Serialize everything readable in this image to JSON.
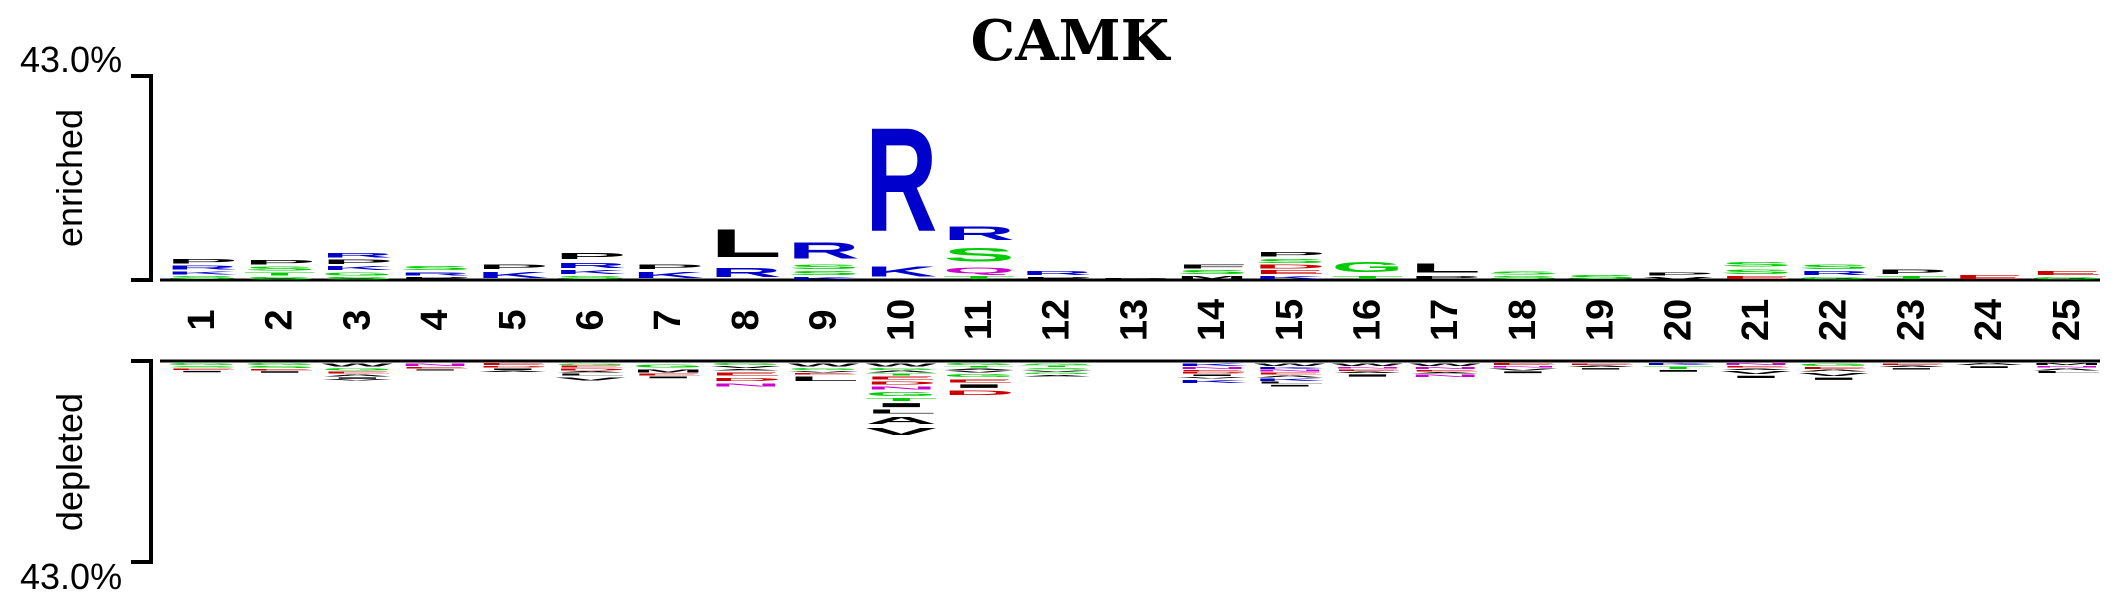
{
  "chart_data": {
    "type": "sequence-logo",
    "title": "CAMK",
    "enriched_label": "enriched",
    "depleted_label": "depleted",
    "top_limit_label": "43.0%",
    "bottom_limit_label": "43.0%",
    "ylim": [
      -43.0,
      43.0
    ],
    "positions": [
      "1",
      "2",
      "3",
      "4",
      "5",
      "6",
      "7",
      "8",
      "9",
      "10",
      "11",
      "12",
      "13",
      "14",
      "15",
      "16",
      "17",
      "18",
      "19",
      "20",
      "21",
      "22",
      "23",
      "24",
      "25"
    ],
    "residue_colors": {
      "R": "#0000cc",
      "K": "#0000cc",
      "H": "#0000cc",
      "D": "#cc0000",
      "E": "#cc0000",
      "S": "#00cc00",
      "T": "#00cc00",
      "G": "#00cc00",
      "Y": "#00cc00",
      "C": "#00cc00",
      "N": "#cc00cc",
      "Q": "#cc00cc",
      "P": "#000000",
      "L": "#000000",
      "A": "#000000",
      "V": "#000000",
      "I": "#000000",
      "M": "#000000",
      "F": "#000000",
      "W": "#000000"
    },
    "enriched": [
      [
        {
          "aa": "S",
          "h": 1.0
        },
        {
          "aa": "K",
          "h": 1.0
        },
        {
          "aa": "R",
          "h": 1.2
        },
        {
          "aa": "P",
          "h": 1.6
        }
      ],
      [
        {
          "aa": "S",
          "h": 0.8
        },
        {
          "aa": "T",
          "h": 1.0
        },
        {
          "aa": "S",
          "h": 1.2
        },
        {
          "aa": "P",
          "h": 1.5
        }
      ],
      [
        {
          "aa": "S",
          "h": 0.8
        },
        {
          "aa": "G",
          "h": 1.0
        },
        {
          "aa": "K",
          "h": 1.3
        },
        {
          "aa": "P",
          "h": 1.4
        },
        {
          "aa": "R",
          "h": 1.5
        }
      ],
      [
        {
          "aa": "P",
          "h": 0.8
        },
        {
          "aa": "R",
          "h": 1.0
        },
        {
          "aa": "S",
          "h": 1.3
        }
      ],
      [
        {
          "aa": "K",
          "h": 2.0
        },
        {
          "aa": "P",
          "h": 1.6
        }
      ],
      [
        {
          "aa": "S",
          "h": 1.0
        },
        {
          "aa": "K",
          "h": 1.2
        },
        {
          "aa": "R",
          "h": 1.8
        },
        {
          "aa": "P",
          "h": 2.0
        }
      ],
      [
        {
          "aa": "K",
          "h": 2.0
        },
        {
          "aa": "P",
          "h": 1.6
        }
      ],
      [
        {
          "aa": "R",
          "h": 3.0
        },
        {
          "aa": "L",
          "h": 9.5
        }
      ],
      [
        {
          "aa": "K",
          "h": 0.8
        },
        {
          "aa": "S",
          "h": 1.2
        },
        {
          "aa": "S",
          "h": 1.5
        },
        {
          "aa": "R",
          "h": 5.5
        }
      ],
      [
        {
          "aa": "K",
          "h": 3.5
        },
        {
          "aa": "R",
          "h": 35.0
        }
      ],
      [
        {
          "aa": "T",
          "h": 1.0
        },
        {
          "aa": "Q",
          "h": 2.0
        },
        {
          "aa": "S",
          "h": 4.5
        },
        {
          "aa": "R",
          "h": 4.5
        }
      ],
      [
        {
          "aa": "P",
          "h": 0.8
        },
        {
          "aa": "R",
          "h": 1.2
        }
      ],
      [
        {
          "aa": "P",
          "h": 0.4
        }
      ],
      [
        {
          "aa": "M",
          "h": 1.0
        },
        {
          "aa": "S",
          "h": 1.2
        },
        {
          "aa": "F",
          "h": 1.3
        }
      ],
      [
        {
          "aa": "K",
          "h": 1.0
        },
        {
          "aa": "E",
          "h": 1.2
        },
        {
          "aa": "D",
          "h": 1.2
        },
        {
          "aa": "S",
          "h": 1.2
        },
        {
          "aa": "P",
          "h": 1.6
        }
      ],
      [
        {
          "aa": "T",
          "h": 1.0
        },
        {
          "aa": "G",
          "h": 3.5
        }
      ],
      [
        {
          "aa": "P",
          "h": 1.0
        },
        {
          "aa": "L",
          "h": 3.0
        }
      ],
      [
        {
          "aa": "S",
          "h": 1.0
        },
        {
          "aa": "S",
          "h": 1.0
        }
      ],
      [
        {
          "aa": "S",
          "h": 1.3
        }
      ],
      [
        {
          "aa": "V",
          "h": 0.8
        },
        {
          "aa": "P",
          "h": 1.0
        }
      ],
      [
        {
          "aa": "E",
          "h": 1.0
        },
        {
          "aa": "S",
          "h": 1.5
        },
        {
          "aa": "S",
          "h": 1.5
        }
      ],
      [
        {
          "aa": "G",
          "h": 0.8
        },
        {
          "aa": "R",
          "h": 1.2
        },
        {
          "aa": "S",
          "h": 1.6
        }
      ],
      [
        {
          "aa": "T",
          "h": 1.0
        },
        {
          "aa": "P",
          "h": 1.6
        }
      ],
      [
        {
          "aa": "E",
          "h": 1.2
        }
      ],
      [
        {
          "aa": "G",
          "h": 0.8
        },
        {
          "aa": "E",
          "h": 1.2
        }
      ]
    ],
    "depleted": [
      [
        {
          "aa": "G",
          "h": 0.6
        },
        {
          "aa": "S",
          "h": 0.5
        },
        {
          "aa": "E",
          "h": 0.5
        },
        {
          "aa": "I",
          "h": 0.5
        }
      ],
      [
        {
          "aa": "G",
          "h": 0.6
        },
        {
          "aa": "S",
          "h": 0.6
        },
        {
          "aa": "E",
          "h": 0.5
        },
        {
          "aa": "I",
          "h": 0.5
        }
      ],
      [
        {
          "aa": "W",
          "h": 1.0
        },
        {
          "aa": "G",
          "h": 0.8
        },
        {
          "aa": "E",
          "h": 0.6
        },
        {
          "aa": "A",
          "h": 0.6
        },
        {
          "aa": "I",
          "h": 0.5
        },
        {
          "aa": "V",
          "h": 0.4
        }
      ],
      [
        {
          "aa": "N",
          "h": 0.8
        },
        {
          "aa": "E",
          "h": 0.5
        },
        {
          "aa": "I",
          "h": 0.4
        }
      ],
      [
        {
          "aa": "E",
          "h": 0.6
        },
        {
          "aa": "D",
          "h": 0.5
        },
        {
          "aa": "I",
          "h": 0.5
        },
        {
          "aa": "A",
          "h": 0.4
        }
      ],
      [
        {
          "aa": "G",
          "h": 0.5
        },
        {
          "aa": "E",
          "h": 0.6
        },
        {
          "aa": "D",
          "h": 0.6
        },
        {
          "aa": "A",
          "h": 0.5
        },
        {
          "aa": "L",
          "h": 0.6
        },
        {
          "aa": "V",
          "h": 1.2
        }
      ],
      [
        {
          "aa": "G",
          "h": 1.2
        },
        {
          "aa": "M",
          "h": 1.0
        },
        {
          "aa": "E",
          "h": 0.6
        },
        {
          "aa": "I",
          "h": 0.6
        }
      ],
      [
        {
          "aa": "G",
          "h": 0.6
        },
        {
          "aa": "V",
          "h": 0.6
        },
        {
          "aa": "A",
          "h": 0.5
        },
        {
          "aa": "E",
          "h": 1.2
        },
        {
          "aa": "D",
          "h": 1.2
        },
        {
          "aa": "N",
          "h": 1.2
        }
      ],
      [
        {
          "aa": "W",
          "h": 1.0
        },
        {
          "aa": "G",
          "h": 0.6
        },
        {
          "aa": "V",
          "h": 0.5
        },
        {
          "aa": "E",
          "h": 0.5
        },
        {
          "aa": "L",
          "h": 1.6
        }
      ],
      [
        {
          "aa": "W",
          "h": 1.0
        },
        {
          "aa": "G",
          "h": 0.6
        },
        {
          "aa": "A",
          "h": 0.6
        },
        {
          "aa": "T",
          "h": 0.6
        },
        {
          "aa": "E",
          "h": 1.0
        },
        {
          "aa": "D",
          "h": 1.0
        },
        {
          "aa": "N",
          "h": 1.2
        },
        {
          "aa": "G",
          "h": 1.4
        },
        {
          "aa": "T",
          "h": 1.0
        },
        {
          "aa": "I",
          "h": 1.4
        },
        {
          "aa": "L",
          "h": 1.4
        },
        {
          "aa": "A",
          "h": 2.4
        },
        {
          "aa": "V",
          "h": 2.4
        }
      ],
      [
        {
          "aa": "G",
          "h": 0.6
        },
        {
          "aa": "T",
          "h": 0.5
        },
        {
          "aa": "A",
          "h": 0.5
        },
        {
          "aa": "V",
          "h": 0.6
        },
        {
          "aa": "G",
          "h": 1.0
        },
        {
          "aa": "E",
          "h": 1.2
        },
        {
          "aa": "I",
          "h": 1.2
        },
        {
          "aa": "D",
          "h": 1.6
        }
      ],
      [
        {
          "aa": "G",
          "h": 0.5
        },
        {
          "aa": "T",
          "h": 0.5
        },
        {
          "aa": "S",
          "h": 0.5
        },
        {
          "aa": "V",
          "h": 0.5
        },
        {
          "aa": "G",
          "h": 0.5
        },
        {
          "aa": "A",
          "h": 0.5
        }
      ],
      [],
      [
        {
          "aa": "K",
          "h": 0.8
        },
        {
          "aa": "N",
          "h": 0.6
        },
        {
          "aa": "E",
          "h": 0.5
        },
        {
          "aa": "D",
          "h": 0.5
        },
        {
          "aa": "I",
          "h": 0.5
        },
        {
          "aa": "V",
          "h": 0.5
        },
        {
          "aa": "K",
          "h": 1.2
        }
      ],
      [
        {
          "aa": "W",
          "h": 0.8
        },
        {
          "aa": "K",
          "h": 0.6
        },
        {
          "aa": "N",
          "h": 0.6
        },
        {
          "aa": "E",
          "h": 0.6
        },
        {
          "aa": "A",
          "h": 0.6
        },
        {
          "aa": "K",
          "h": 0.8
        },
        {
          "aa": "L",
          "h": 0.6
        },
        {
          "aa": "I",
          "h": 0.6
        }
      ],
      [
        {
          "aa": "W",
          "h": 0.8
        },
        {
          "aa": "N",
          "h": 0.5
        },
        {
          "aa": "E",
          "h": 0.5
        },
        {
          "aa": "A",
          "h": 0.5
        },
        {
          "aa": "I",
          "h": 0.8
        }
      ],
      [
        {
          "aa": "W",
          "h": 0.8
        },
        {
          "aa": "N",
          "h": 0.6
        },
        {
          "aa": "E",
          "h": 0.5
        },
        {
          "aa": "A",
          "h": 0.5
        },
        {
          "aa": "N",
          "h": 0.8
        }
      ],
      [
        {
          "aa": "E",
          "h": 0.6
        },
        {
          "aa": "N",
          "h": 0.5
        },
        {
          "aa": "V",
          "h": 0.6
        },
        {
          "aa": "I",
          "h": 0.6
        }
      ],
      [
        {
          "aa": "E",
          "h": 0.5
        },
        {
          "aa": "A",
          "h": 0.5
        },
        {
          "aa": "I",
          "h": 0.5
        }
      ],
      [
        {
          "aa": "K",
          "h": 0.6
        },
        {
          "aa": "T",
          "h": 0.8
        },
        {
          "aa": "I",
          "h": 0.6
        }
      ],
      [
        {
          "aa": "N",
          "h": 0.6
        },
        {
          "aa": "E",
          "h": 0.5
        },
        {
          "aa": "A",
          "h": 0.5
        },
        {
          "aa": "V",
          "h": 1.0
        },
        {
          "aa": "I",
          "h": 0.8
        }
      ],
      [
        {
          "aa": "G",
          "h": 0.8
        },
        {
          "aa": "E",
          "h": 0.6
        },
        {
          "aa": "A",
          "h": 0.6
        },
        {
          "aa": "V",
          "h": 1.0
        },
        {
          "aa": "I",
          "h": 0.8
        }
      ],
      [
        {
          "aa": "E",
          "h": 0.5
        },
        {
          "aa": "A",
          "h": 0.5
        },
        {
          "aa": "I",
          "h": 0.5
        }
      ],
      [
        {
          "aa": "A",
          "h": 0.6
        },
        {
          "aa": "I",
          "h": 0.6
        }
      ],
      [
        {
          "aa": "M",
          "h": 0.6
        },
        {
          "aa": "N",
          "h": 0.5
        },
        {
          "aa": "A",
          "h": 0.6
        },
        {
          "aa": "L",
          "h": 0.6
        }
      ]
    ]
  }
}
